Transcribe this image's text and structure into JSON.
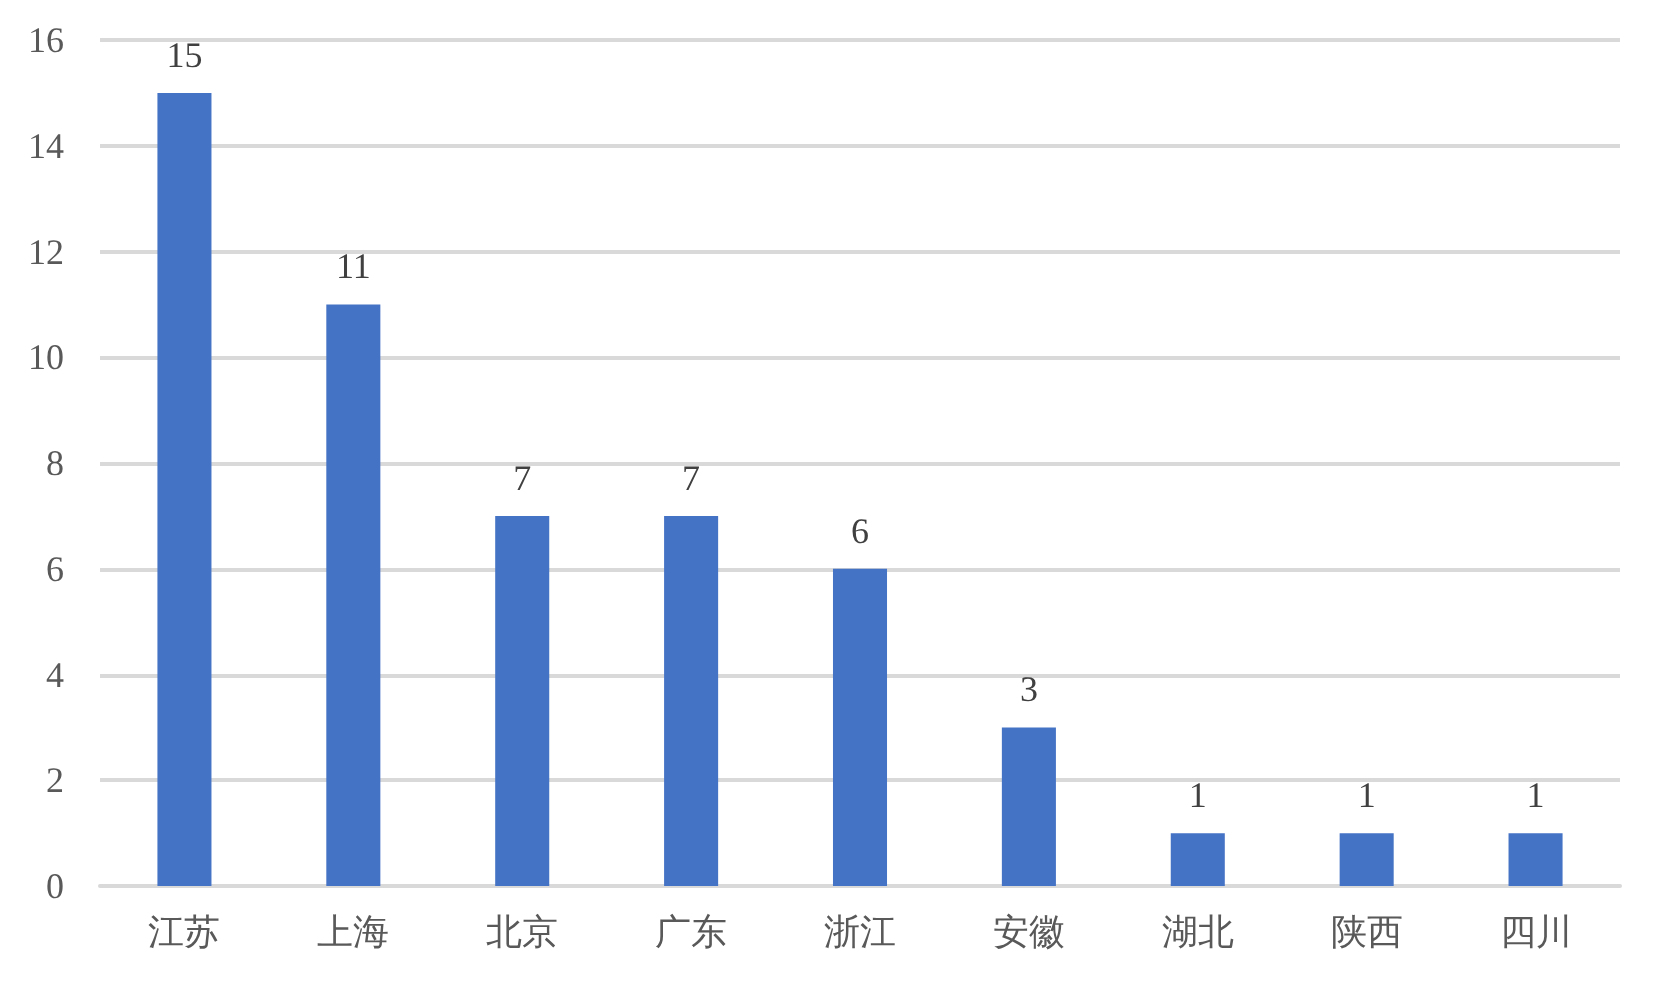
{
  "chart_data": {
    "type": "bar",
    "categories": [
      "江苏",
      "上海",
      "北京",
      "广东",
      "浙江",
      "安徽",
      "湖北",
      "陕西",
      "四川"
    ],
    "values": [
      15,
      11,
      7,
      7,
      6,
      3,
      1,
      1,
      1
    ],
    "color": "#4472c4",
    "ylim": [
      0,
      16
    ],
    "yticks": [
      0,
      2,
      4,
      6,
      8,
      10,
      12,
      14,
      16
    ],
    "grid": "y",
    "data_labels": true
  }
}
